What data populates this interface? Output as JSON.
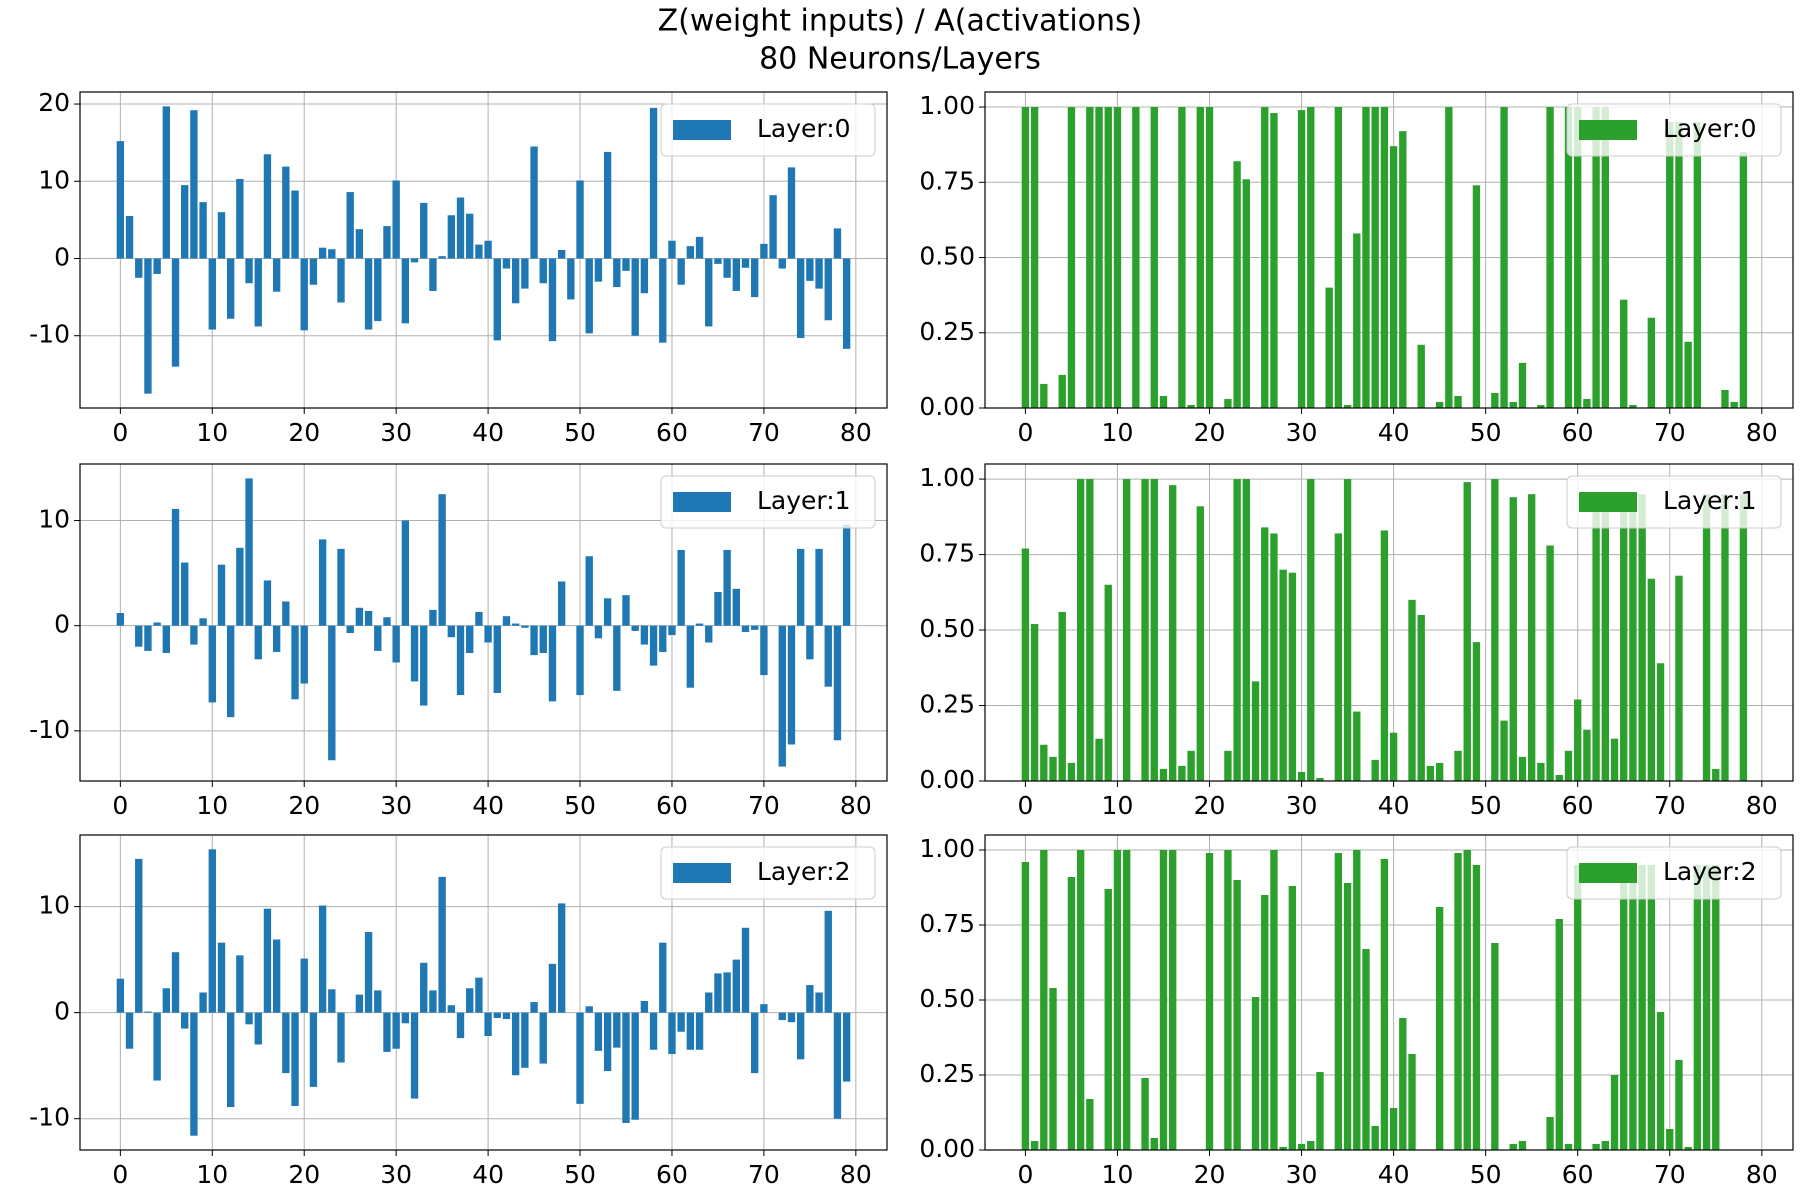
{
  "title": "Z(weight inputs) / A(activations)",
  "subtitle": "80 Neurons/Layers",
  "chart_data": [
    {
      "type": "bar",
      "x": [
        0,
        1,
        2,
        3,
        4,
        5,
        6,
        7,
        8,
        9,
        10,
        11,
        12,
        13,
        14,
        15,
        16,
        17,
        18,
        19,
        20,
        21,
        22,
        23,
        24,
        25,
        26,
        27,
        28,
        29,
        30,
        31,
        32,
        33,
        34,
        35,
        36,
        37,
        38,
        39,
        40,
        41,
        42,
        43,
        44,
        45,
        46,
        47,
        48,
        49,
        50,
        51,
        52,
        53,
        54,
        55,
        56,
        57,
        58,
        59,
        60,
        61,
        62,
        63,
        64,
        65,
        66,
        67,
        68,
        69,
        70,
        71,
        72,
        73,
        74,
        75,
        76,
        77,
        78,
        79
      ],
      "series": [
        {
          "name": "Layer:0",
          "color": "#1f77b4",
          "values": [
            15.2,
            5.5,
            -2.5,
            -17.5,
            -2,
            19.7,
            -14,
            9.5,
            19.2,
            7.3,
            -9.2,
            6,
            -7.8,
            10.3,
            -3.2,
            -8.8,
            13.5,
            -4.3,
            11.9,
            8.8,
            -9.3,
            -3.4,
            1.4,
            1.2,
            -5.7,
            8.6,
            3.8,
            -9.2,
            -8.1,
            4.2,
            10.1,
            -8.4,
            -0.5,
            7.2,
            -4.2,
            0.3,
            5.6,
            7.9,
            5.8,
            1.8,
            2.3,
            -10.6,
            -1.3,
            -5.8,
            -3.9,
            14.5,
            -3.2,
            -10.7,
            1.1,
            -5.3,
            10.1,
            -9.7,
            -3,
            13.8,
            -3.7,
            -1.6,
            -10,
            -4.5,
            19.5,
            -10.9,
            2.3,
            -3.4,
            1.6,
            2.8,
            -8.8,
            -0.7,
            -2.5,
            -4.2,
            -1.2,
            -5,
            1.9,
            8.2,
            -1.3,
            11.8,
            -10.3,
            -2.9,
            -3.9,
            -8,
            3.9,
            -11.7
          ]
        }
      ],
      "xlim": [
        -4.39,
        83.39
      ],
      "ylim": [
        -19.36,
        21.56
      ],
      "xticks": [
        0,
        10,
        20,
        30,
        40,
        50,
        60,
        70,
        80
      ],
      "yticks": [
        -10,
        0,
        10,
        20
      ],
      "grid": true,
      "legend": "upper right"
    },
    {
      "type": "bar",
      "x": [
        0,
        1,
        2,
        3,
        4,
        5,
        6,
        7,
        8,
        9,
        10,
        11,
        12,
        13,
        14,
        15,
        16,
        17,
        18,
        19,
        20,
        21,
        22,
        23,
        24,
        25,
        26,
        27,
        28,
        29,
        30,
        31,
        32,
        33,
        34,
        35,
        36,
        37,
        38,
        39,
        40,
        41,
        42,
        43,
        44,
        45,
        46,
        47,
        48,
        49,
        50,
        51,
        52,
        53,
        54,
        55,
        56,
        57,
        58,
        59,
        60,
        61,
        62,
        63,
        64,
        65,
        66,
        67,
        68,
        69,
        70,
        71,
        72,
        73,
        74,
        75,
        76,
        77,
        78,
        79
      ],
      "series": [
        {
          "name": "Layer:0",
          "color": "#2ca02c",
          "values": [
            1,
            1,
            0.08,
            0,
            0.11,
            1,
            0,
            1,
            1,
            1,
            1,
            0,
            1,
            0,
            1,
            0.04,
            0,
            1,
            0.01,
            1,
            1,
            0,
            0.03,
            0.82,
            0.76,
            0,
            1,
            0.98,
            0,
            0,
            0.99,
            1,
            0,
            0.4,
            1,
            0.01,
            0.58,
            1,
            1,
            1,
            0.87,
            0.92,
            0,
            0.21,
            0,
            0.02,
            1,
            0.04,
            0,
            0.74,
            0,
            0.05,
            1,
            0.02,
            0.15,
            0,
            0.01,
            1,
            0,
            1,
            1,
            0.03,
            1,
            1,
            0,
            0.36,
            0.01,
            0,
            0.3,
            0,
            0.95,
            0.95,
            0.22,
            0.95,
            0,
            0,
            0.06,
            0.02,
            0.85,
            0
          ]
        }
      ],
      "xlim": [
        -4.39,
        83.39
      ],
      "ylim": [
        0,
        1.05
      ],
      "xticks": [
        0,
        10,
        20,
        30,
        40,
        50,
        60,
        70,
        80
      ],
      "yticks": [
        {
          "value": 0,
          "label": "0.00"
        },
        0.25,
        {
          "value": 0.5,
          "label": "0.50"
        },
        0.75,
        {
          "value": 1,
          "label": "1.00"
        }
      ],
      "grid": true,
      "legend": "upper right"
    },
    {
      "type": "bar",
      "x": [
        0,
        1,
        2,
        3,
        4,
        5,
        6,
        7,
        8,
        9,
        10,
        11,
        12,
        13,
        14,
        15,
        16,
        17,
        18,
        19,
        20,
        21,
        22,
        23,
        24,
        25,
        26,
        27,
        28,
        29,
        30,
        31,
        32,
        33,
        34,
        35,
        36,
        37,
        38,
        39,
        40,
        41,
        42,
        43,
        44,
        45,
        46,
        47,
        48,
        49,
        50,
        51,
        52,
        53,
        54,
        55,
        56,
        57,
        58,
        59,
        60,
        61,
        62,
        63,
        64,
        65,
        66,
        67,
        68,
        69,
        70,
        71,
        72,
        73,
        74,
        75,
        76,
        77,
        78,
        79
      ],
      "series": [
        {
          "name": "Layer:1",
          "color": "#1f77b4",
          "values": [
            1.2,
            0,
            -2,
            -2.4,
            0.3,
            -2.6,
            11.1,
            6,
            -1.8,
            0.7,
            -7.3,
            5.8,
            -8.7,
            7.4,
            14,
            -3.2,
            4.3,
            -2.5,
            2.3,
            -7,
            -5.5,
            0,
            8.2,
            -12.8,
            7.3,
            -0.7,
            1.7,
            1.4,
            -2.4,
            0.8,
            -3.5,
            10,
            -5.3,
            -7.6,
            1.5,
            12.5,
            -1.1,
            -6.6,
            -2.6,
            1.3,
            -1.6,
            -6.4,
            0.9,
            0.2,
            -0.2,
            -2.8,
            -2.6,
            -7.2,
            4.2,
            0,
            -6.6,
            6.6,
            -1.2,
            2.6,
            -6.2,
            2.9,
            -0.5,
            -1.8,
            -3.8,
            -2.5,
            -0.9,
            7.2,
            -5.9,
            0.2,
            -1.6,
            3.2,
            7.2,
            3.5,
            -0.6,
            -0.4,
            -4.7,
            0,
            -13.4,
            -11.3,
            7.3,
            -3.2,
            7.3,
            -5.8,
            -10.9,
            9.6
          ]
        }
      ],
      "xlim": [
        -4.39,
        83.39
      ],
      "ylim": [
        -14.77,
        15.37
      ],
      "xticks": [
        0,
        10,
        20,
        30,
        40,
        50,
        60,
        70,
        80
      ],
      "yticks": [
        -10,
        0,
        10
      ],
      "grid": true,
      "legend": "upper right"
    },
    {
      "type": "bar",
      "x": [
        0,
        1,
        2,
        3,
        4,
        5,
        6,
        7,
        8,
        9,
        10,
        11,
        12,
        13,
        14,
        15,
        16,
        17,
        18,
        19,
        20,
        21,
        22,
        23,
        24,
        25,
        26,
        27,
        28,
        29,
        30,
        31,
        32,
        33,
        34,
        35,
        36,
        37,
        38,
        39,
        40,
        41,
        42,
        43,
        44,
        45,
        46,
        47,
        48,
        49,
        50,
        51,
        52,
        53,
        54,
        55,
        56,
        57,
        58,
        59,
        60,
        61,
        62,
        63,
        64,
        65,
        66,
        67,
        68,
        69,
        70,
        71,
        72,
        73,
        74,
        75,
        76,
        77,
        78,
        79
      ],
      "series": [
        {
          "name": "Layer:1",
          "color": "#2ca02c",
          "values": [
            0.77,
            0.52,
            0.12,
            0.08,
            0.56,
            0.06,
            1,
            1,
            0.14,
            0.65,
            0,
            1,
            0,
            1,
            1,
            0.04,
            0.98,
            0.05,
            0.1,
            0.91,
            0,
            0,
            0.1,
            1,
            1,
            0.33,
            0.84,
            0.82,
            0.7,
            0.69,
            0.03,
            1,
            0.01,
            0,
            0.82,
            1,
            0.23,
            0,
            0.07,
            0.83,
            0.16,
            0,
            0.6,
            0.55,
            0.05,
            0.06,
            0,
            0.1,
            0.99,
            0.46,
            0,
            1,
            0.2,
            0.94,
            0.08,
            0.95,
            0.06,
            0.78,
            0.02,
            0.1,
            0.27,
            0.17,
            0.95,
            0.95,
            0.14,
            0.95,
            0.95,
            0.95,
            0.67,
            0.39,
            0,
            0.68,
            0,
            0,
            0.95,
            0.04,
            0.95,
            0,
            0.95,
            0
          ]
        }
      ],
      "xlim": [
        -4.39,
        83.39
      ],
      "ylim": [
        0,
        1.05
      ],
      "xticks": [
        0,
        10,
        20,
        30,
        40,
        50,
        60,
        70,
        80
      ],
      "yticks": [
        {
          "value": 0,
          "label": "0.00"
        },
        0.25,
        {
          "value": 0.5,
          "label": "0.50"
        },
        0.75,
        {
          "value": 1,
          "label": "1.00"
        }
      ],
      "grid": true,
      "legend": "upper right"
    },
    {
      "type": "bar",
      "x": [
        0,
        1,
        2,
        3,
        4,
        5,
        6,
        7,
        8,
        9,
        10,
        11,
        12,
        13,
        14,
        15,
        16,
        17,
        18,
        19,
        20,
        21,
        22,
        23,
        24,
        25,
        26,
        27,
        28,
        29,
        30,
        31,
        32,
        33,
        34,
        35,
        36,
        37,
        38,
        39,
        40,
        41,
        42,
        43,
        44,
        45,
        46,
        47,
        48,
        49,
        50,
        51,
        52,
        53,
        54,
        55,
        56,
        57,
        58,
        59,
        60,
        61,
        62,
        63,
        64,
        65,
        66,
        67,
        68,
        69,
        70,
        71,
        72,
        73,
        74,
        75,
        76,
        77,
        78,
        79
      ],
      "series": [
        {
          "name": "Layer:2",
          "color": "#1f77b4",
          "values": [
            3.2,
            -3.4,
            14.5,
            0.1,
            -6.4,
            2.3,
            5.7,
            -1.5,
            -11.6,
            1.9,
            15.4,
            6.6,
            -8.9,
            5.4,
            -1.1,
            -3,
            9.8,
            6.9,
            -5.7,
            -8.8,
            5.1,
            -7,
            10.1,
            2.2,
            -4.7,
            0,
            1.7,
            7.6,
            2.1,
            -3.7,
            -3.4,
            -1,
            -8.1,
            4.7,
            2.1,
            12.8,
            0.7,
            -2.4,
            2.3,
            3.3,
            -2.2,
            -0.5,
            -0.6,
            -5.9,
            -5.2,
            1,
            -4.8,
            4.6,
            10.3,
            0,
            -8.6,
            0.6,
            -3.6,
            -5.5,
            -3.3,
            -10.4,
            -10.1,
            1.1,
            -3.5,
            6.6,
            -3.9,
            -1.8,
            -3.5,
            -3.5,
            1.9,
            3.7,
            3.8,
            5,
            8,
            -5.7,
            0.8,
            0,
            -0.7,
            -0.9,
            -4.4,
            2.6,
            1.9,
            9.6,
            -10,
            -6.5
          ]
        }
      ],
      "xlim": [
        -4.39,
        83.39
      ],
      "ylim": [
        -12.95,
        16.75
      ],
      "xticks": [
        0,
        10,
        20,
        30,
        40,
        50,
        60,
        70,
        80
      ],
      "yticks": [
        -10,
        0,
        10
      ],
      "grid": true,
      "legend": "upper right"
    },
    {
      "type": "bar",
      "x": [
        0,
        1,
        2,
        3,
        4,
        5,
        6,
        7,
        8,
        9,
        10,
        11,
        12,
        13,
        14,
        15,
        16,
        17,
        18,
        19,
        20,
        21,
        22,
        23,
        24,
        25,
        26,
        27,
        28,
        29,
        30,
        31,
        32,
        33,
        34,
        35,
        36,
        37,
        38,
        39,
        40,
        41,
        42,
        43,
        44,
        45,
        46,
        47,
        48,
        49,
        50,
        51,
        52,
        53,
        54,
        55,
        56,
        57,
        58,
        59,
        60,
        61,
        62,
        63,
        64,
        65,
        66,
        67,
        68,
        69,
        70,
        71,
        72,
        73,
        74,
        75,
        76,
        77,
        78,
        79
      ],
      "series": [
        {
          "name": "Layer:2",
          "color": "#2ca02c",
          "values": [
            0.96,
            0.03,
            1,
            0.54,
            0,
            0.91,
            1,
            0.17,
            0,
            0.87,
            1,
            1,
            0,
            0.24,
            0.04,
            1,
            1,
            0,
            0,
            0,
            0.99,
            0,
            1,
            0.9,
            0,
            0.51,
            0.85,
            1,
            0.01,
            0.88,
            0.02,
            0.03,
            0.26,
            0,
            0.99,
            0.89,
            1,
            0.67,
            0.08,
            0.97,
            0.14,
            0.44,
            0.32,
            0,
            0,
            0.81,
            0,
            0.99,
            1,
            0.95,
            0,
            0.69,
            0,
            0.02,
            0.03,
            0,
            0,
            0.11,
            0.77,
            0.02,
            0.95,
            0,
            0.02,
            0.03,
            0.25,
            0.95,
            0.95,
            0.95,
            0.95,
            0.46,
            0.07,
            0.3,
            0.01,
            0.95,
            0.95,
            0.95,
            0,
            0,
            0,
            0
          ]
        }
      ],
      "xlim": [
        -4.39,
        83.39
      ],
      "ylim": [
        0,
        1.05
      ],
      "xticks": [
        0,
        10,
        20,
        30,
        40,
        50,
        60,
        70,
        80
      ],
      "yticks": [
        {
          "value": 0,
          "label": "0.00"
        },
        0.25,
        {
          "value": 0.5,
          "label": "0.50"
        },
        0.75,
        {
          "value": 1,
          "label": "1.00"
        }
      ],
      "grid": true,
      "legend": "upper right"
    }
  ]
}
